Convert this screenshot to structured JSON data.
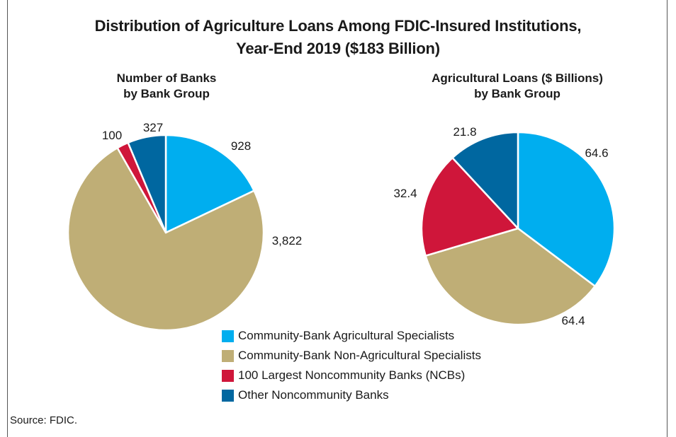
{
  "title_line1": "Distribution of Agriculture Loans Among FDIC-Insured Institutions,",
  "title_line2": "Year-End 2019 ($183 Billion)",
  "source": "Source: FDIC.",
  "colors": {
    "cb_ag": "#00aeef",
    "cb_nonag": "#bfae76",
    "largest_ncb": "#cf163a",
    "other_ncb": "#0067a0"
  },
  "legend": [
    {
      "label": "Community-Bank Agricultural Specialists",
      "color": "#00aeef"
    },
    {
      "label": "Community-Bank Non-Agricultural Specialists",
      "color": "#bfae76"
    },
    {
      "label": "100 Largest Noncommunity Banks (NCBs)",
      "color": "#cf163a"
    },
    {
      "label": "Other Noncommunity Banks",
      "color": "#0067a0"
    }
  ],
  "chart_data": [
    {
      "type": "pie",
      "title": "Number of Banks by Bank Group",
      "title_lines": [
        "Number of Banks",
        "by Bank Group"
      ],
      "categories": [
        "Community-Bank Agricultural Specialists",
        "Community-Bank Non-Agricultural Specialists",
        "100 Largest Noncommunity Banks (NCBs)",
        "Other Noncommunity Banks"
      ],
      "values": [
        928,
        3822,
        100,
        327
      ],
      "labels": [
        "928",
        "3,822",
        "100",
        "327"
      ],
      "colors": [
        "#00aeef",
        "#bfae76",
        "#cf163a",
        "#0067a0"
      ],
      "start": "12 o'clock, clockwise"
    },
    {
      "type": "pie",
      "title": "Agricultural Loans ($ Billions) by Bank Group",
      "title_lines": [
        "Agricultural Loans ($ Billions)",
        "by Bank Group"
      ],
      "categories": [
        "Community-Bank Agricultural Specialists",
        "Community-Bank Non-Agricultural Specialists",
        "100 Largest Noncommunity Banks (NCBs)",
        "Other Noncommunity Banks"
      ],
      "values": [
        64.6,
        64.4,
        32.4,
        21.8
      ],
      "labels": [
        "64.6",
        "64.4",
        "32.4",
        "21.8"
      ],
      "colors": [
        "#00aeef",
        "#bfae76",
        "#cf163a",
        "#0067a0"
      ],
      "start": "12 o'clock, clockwise"
    }
  ]
}
